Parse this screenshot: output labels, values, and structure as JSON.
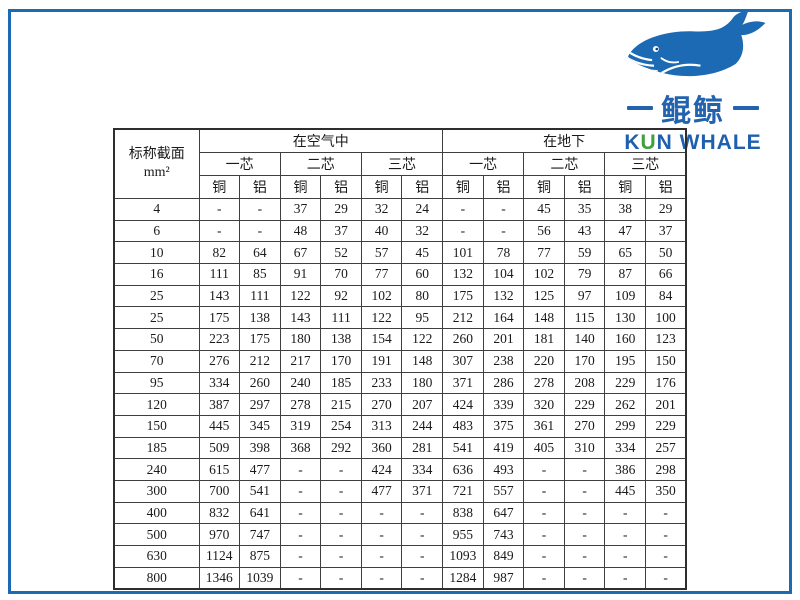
{
  "logo": {
    "brand_cn": "鲲鲸",
    "en_part1": "K",
    "en_part2": "U",
    "en_part3": "N WHALE",
    "colors": {
      "whale_blue": "#1b6ab3",
      "text_blue": "#2363ae",
      "text_green": "#3fa13c"
    }
  },
  "table": {
    "section_header_line1": "标称截面",
    "section_header_line2": "mm²",
    "groups": [
      "在空气中",
      "在地下"
    ],
    "cores": [
      "一芯",
      "二芯",
      "三芯",
      "一芯",
      "二芯",
      "三芯"
    ],
    "materials": [
      "铜",
      "铝",
      "铜",
      "铝",
      "铜",
      "铝",
      "铜",
      "铝",
      "铜",
      "铝",
      "铜",
      "铝"
    ],
    "rows": [
      {
        "section": "4",
        "values": [
          "-",
          "-",
          "37",
          "29",
          "32",
          "24",
          "-",
          "-",
          "45",
          "35",
          "38",
          "29"
        ]
      },
      {
        "section": "6",
        "values": [
          "-",
          "-",
          "48",
          "37",
          "40",
          "32",
          "-",
          "-",
          "56",
          "43",
          "47",
          "37"
        ]
      },
      {
        "section": "10",
        "values": [
          "82",
          "64",
          "67",
          "52",
          "57",
          "45",
          "101",
          "78",
          "77",
          "59",
          "65",
          "50"
        ]
      },
      {
        "section": "16",
        "values": [
          "111",
          "85",
          "91",
          "70",
          "77",
          "60",
          "132",
          "104",
          "102",
          "79",
          "87",
          "66"
        ]
      },
      {
        "section": "25",
        "values": [
          "143",
          "111",
          "122",
          "92",
          "102",
          "80",
          "175",
          "132",
          "125",
          "97",
          "109",
          "84"
        ]
      },
      {
        "section": "25",
        "values": [
          "175",
          "138",
          "143",
          "111",
          "122",
          "95",
          "212",
          "164",
          "148",
          "115",
          "130",
          "100"
        ]
      },
      {
        "section": "50",
        "values": [
          "223",
          "175",
          "180",
          "138",
          "154",
          "122",
          "260",
          "201",
          "181",
          "140",
          "160",
          "123"
        ]
      },
      {
        "section": "70",
        "values": [
          "276",
          "212",
          "217",
          "170",
          "191",
          "148",
          "307",
          "238",
          "220",
          "170",
          "195",
          "150"
        ]
      },
      {
        "section": "95",
        "values": [
          "334",
          "260",
          "240",
          "185",
          "233",
          "180",
          "371",
          "286",
          "278",
          "208",
          "229",
          "176"
        ]
      },
      {
        "section": "120",
        "values": [
          "387",
          "297",
          "278",
          "215",
          "270",
          "207",
          "424",
          "339",
          "320",
          "229",
          "262",
          "201"
        ]
      },
      {
        "section": "150",
        "values": [
          "445",
          "345",
          "319",
          "254",
          "313",
          "244",
          "483",
          "375",
          "361",
          "270",
          "299",
          "229"
        ]
      },
      {
        "section": "185",
        "values": [
          "509",
          "398",
          "368",
          "292",
          "360",
          "281",
          "541",
          "419",
          "405",
          "310",
          "334",
          "257"
        ]
      },
      {
        "section": "240",
        "values": [
          "615",
          "477",
          "-",
          "-",
          "424",
          "334",
          "636",
          "493",
          "-",
          "-",
          "386",
          "298"
        ]
      },
      {
        "section": "300",
        "values": [
          "700",
          "541",
          "-",
          "-",
          "477",
          "371",
          "721",
          "557",
          "-",
          "-",
          "445",
          "350"
        ]
      },
      {
        "section": "400",
        "values": [
          "832",
          "641",
          "-",
          "-",
          "-",
          "-",
          "838",
          "647",
          "-",
          "-",
          "-",
          "-"
        ]
      },
      {
        "section": "500",
        "values": [
          "970",
          "747",
          "-",
          "-",
          "-",
          "-",
          "955",
          "743",
          "-",
          "-",
          "-",
          "-"
        ]
      },
      {
        "section": "630",
        "values": [
          "1124",
          "875",
          "-",
          "-",
          "-",
          "-",
          "1093",
          "849",
          "-",
          "-",
          "-",
          "-"
        ]
      },
      {
        "section": "800",
        "values": [
          "1346",
          "1039",
          "-",
          "-",
          "-",
          "-",
          "1284",
          "987",
          "-",
          "-",
          "-",
          "-"
        ]
      }
    ]
  }
}
